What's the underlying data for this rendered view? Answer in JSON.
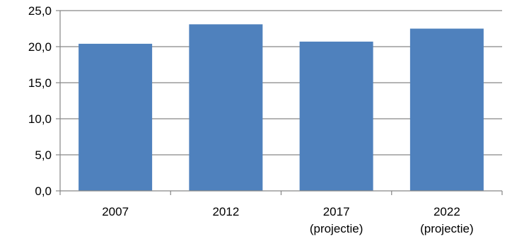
{
  "chart_data": {
    "type": "bar",
    "categories": [
      [
        "2007"
      ],
      [
        "2012"
      ],
      [
        "2017",
        "(projectie)"
      ],
      [
        "2022",
        "(projectie)"
      ]
    ],
    "values": [
      20.4,
      23.1,
      20.7,
      22.5
    ],
    "ylim": [
      0,
      25
    ],
    "yticks": [
      "0,0",
      "5,0",
      "10,0",
      "15,0",
      "20,0",
      "25,0"
    ],
    "grid": true,
    "bar_color": "#4f81bd",
    "grid_color": "#868686",
    "axis_color": "#868686"
  }
}
